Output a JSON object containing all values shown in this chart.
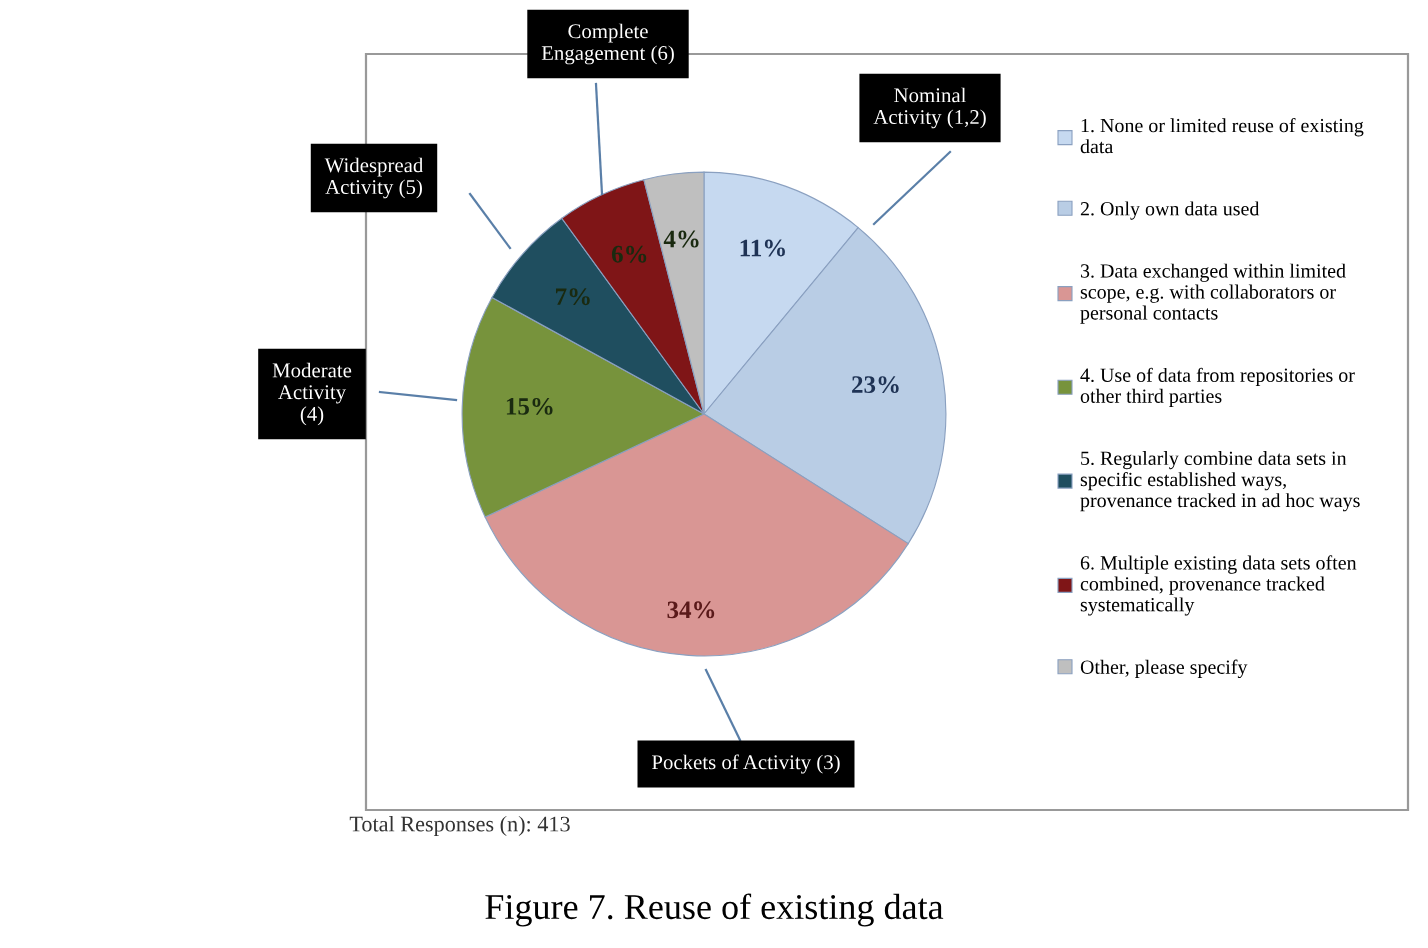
{
  "chart_data": {
    "type": "pie",
    "title": "Figure 7. Reuse of existing data",
    "categories": [
      "1. None or limited reuse of existing\ndata",
      "2. Only own data used",
      "3. Data exchanged within limited\nscope, e.g. with collaborators or\npersonal contacts",
      "4. Use of data from repositories or\nother third parties",
      "5. Regularly combine data sets in\nspecific established ways,\nprovenance tracked in ad hoc ways",
      "6. Multiple existing data sets often\ncombined, provenance tracked\nsystematically",
      "Other, please specify"
    ],
    "values": [
      11,
      23,
      34,
      15,
      7,
      6,
      4
    ],
    "value_labels": [
      "11%",
      "23%",
      "34%",
      "15%",
      "7%",
      "6%",
      "4%"
    ],
    "colors": [
      "#c6d9f0",
      "#b9cde5",
      "#d99694",
      "#77933c",
      "#1f4e5f",
      "#7f1517",
      "#bfbfbf"
    ],
    "legend": "right",
    "annotations": [
      "Complete\nEngagement (6)",
      "Nominal\nActivity (1,2)",
      "Widespread\nActivity (5)",
      "Moderate\nActivity\n(4)",
      "Pockets of Activity (3)",
      "Total Responses (n): 413"
    ]
  }
}
